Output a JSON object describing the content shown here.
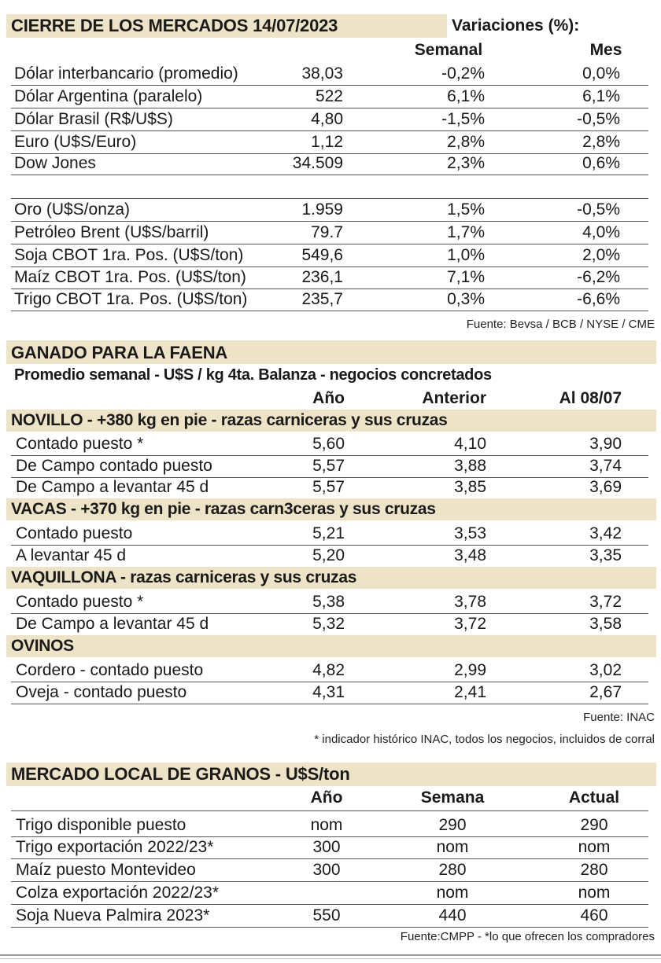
{
  "cierre": {
    "title": "CIERRE DE LOS MERCADOS 14/07/2023",
    "variations_label": "Variaciones (%):",
    "col_semanal": "Semanal",
    "col_mes": "Mes",
    "rows": [
      {
        "label": "Dólar interbancario (promedio)",
        "value": "38,03",
        "semanal": "-0,2%",
        "mes": "0,0%"
      },
      {
        "label": "Dólar Argentina (paralelo)",
        "value": "522",
        "semanal": "6,1%",
        "mes": "6,1%"
      },
      {
        "label": "Dólar Brasil (R$/U$S)",
        "value": "4,80",
        "semanal": "-1,5%",
        "mes": "-0,5%"
      },
      {
        "label": "Euro (U$S/Euro)",
        "value": "1,12",
        "semanal": "2,8%",
        "mes": "2,8%"
      },
      {
        "label": "Dow Jones",
        "value": "34.509",
        "semanal": "2,3%",
        "mes": "0,6%"
      },
      {
        "label": "Oro (U$S/onza)",
        "value": "1.959",
        "semanal": "1,5%",
        "mes": "-0,5%"
      },
      {
        "label": "Petróleo Brent (U$S/barril)",
        "value": "79.7",
        "semanal": "1,7%",
        "mes": "4,0%"
      },
      {
        "label": "Soja CBOT 1ra. Pos. (U$S/ton)",
        "value": "549,6",
        "semanal": "1,0%",
        "mes": "2,0%"
      },
      {
        "label": "Maíz CBOT 1ra. Pos. (U$S/ton)",
        "value": "236,1",
        "semanal": "7,1%",
        "mes": "-6,2%"
      },
      {
        "label": "Trigo CBOT 1ra. Pos. (U$S/ton)",
        "value": "235,7",
        "semanal": "0,3%",
        "mes": "-6,6%"
      }
    ],
    "source": "Fuente: Bevsa / BCB / NYSE / CME"
  },
  "ganado": {
    "title": "GANADO PARA LA FAENA",
    "subtitle": "Promedio semanal - U$S / kg 4ta. Balanza - negocios concretados",
    "col_anio": "Año",
    "col_anterior": "Anterior",
    "col_al": "Al 08/07",
    "groups": [
      {
        "title": "NOVILLO - +380 kg en pie - razas carniceras y sus cruzas",
        "rows": [
          {
            "label": "Contado puesto *",
            "anio": "5,60",
            "anterior": "4,10",
            "al": "3,90"
          },
          {
            "label": "De Campo contado puesto",
            "anio": "5,57",
            "anterior": "3,88",
            "al": "3,74"
          },
          {
            "label": "De Campo a levantar 45 d",
            "anio": "5,57",
            "anterior": "3,85",
            "al": "3,69"
          }
        ]
      },
      {
        "title": "VACAS - +370 kg en pie - razas carn3ceras y sus cruzas",
        "rows": [
          {
            "label": "Contado puesto",
            "anio": "5,21",
            "anterior": "3,53",
            "al": "3,42"
          },
          {
            "label": "A levantar 45 d",
            "anio": "5,20",
            "anterior": "3,48",
            "al": "3,35"
          }
        ]
      },
      {
        "title": "VAQUILLONA - razas carniceras y sus cruzas",
        "rows": [
          {
            "label": "Contado puesto *",
            "anio": "5,38",
            "anterior": "3,78",
            "al": "3,72"
          },
          {
            "label": "De Campo a levantar 45 d",
            "anio": "5,32",
            "anterior": "3,72",
            "al": "3,58"
          }
        ]
      },
      {
        "title": "OVINOS",
        "rows": [
          {
            "label": "Cordero - contado puesto",
            "anio": "4,82",
            "anterior": "2,99",
            "al": "3,02"
          },
          {
            "label": "Oveja - contado puesto",
            "anio": "4,31",
            "anterior": "2,41",
            "al": "2,67"
          }
        ]
      }
    ],
    "source": "Fuente: INAC",
    "note": "* indicador histórico INAC, todos los negocios, incluidos de corral"
  },
  "granos": {
    "title": "MERCADO LOCAL DE GRANOS - U$S/ton",
    "col_anio": "Año",
    "col_semana": "Semana",
    "col_actual": "Actual",
    "rows": [
      {
        "label": "Trigo disponible puesto",
        "anio": "nom",
        "semana": "290",
        "actual": "290"
      },
      {
        "label": "Trigo exportación 2022/23*",
        "anio": "300",
        "semana": "nom",
        "actual": "nom"
      },
      {
        "label": "Maíz puesto Montevideo",
        "anio": "300",
        "semana": "280",
        "actual": "280"
      },
      {
        "label": "Colza exportación 2022/23*",
        "anio": "",
        "semana": "nom",
        "actual": "nom"
      },
      {
        "label": "Soja Nueva Palmira 2023*",
        "anio": "550",
        "semana": "440",
        "actual": "460"
      }
    ],
    "source": "Fuente:CMPP - *lo que ofrecen los compradores"
  }
}
